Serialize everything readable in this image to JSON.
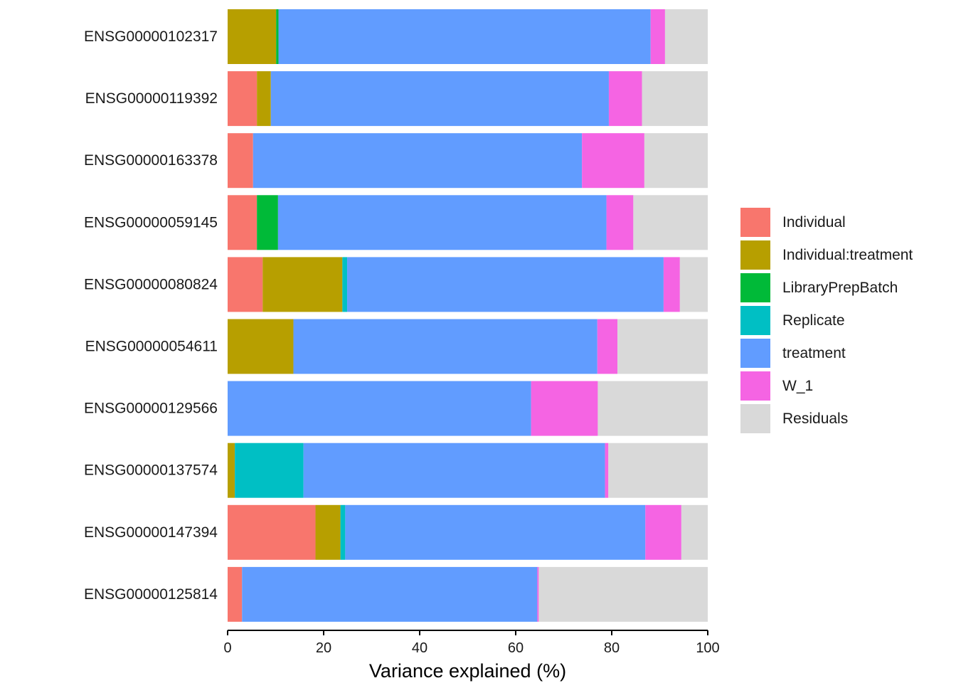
{
  "chart_data": {
    "type": "bar",
    "orientation": "horizontal",
    "stacked": true,
    "xlabel": "Variance explained (%)",
    "ylabel": "",
    "xlim": [
      0,
      100
    ],
    "xticks": [
      0,
      20,
      40,
      60,
      80,
      100
    ],
    "grid": false,
    "legend_position": "right",
    "categories": [
      "ENSG00000102317",
      "ENSG00000119392",
      "ENSG00000163378",
      "ENSG00000059145",
      "ENSG00000080824",
      "ENSG00000054611",
      "ENSG00000129566",
      "ENSG00000137574",
      "ENSG00000147394",
      "ENSG00000125814"
    ],
    "series": [
      {
        "name": "Individual",
        "color": "#F8766D",
        "values": [
          0,
          6.1,
          5.3,
          6.1,
          7.3,
          0,
          0,
          0,
          18.3,
          3.0
        ]
      },
      {
        "name": "Individual:treatment",
        "color": "#B79F00",
        "values": [
          10.1,
          2.9,
          0,
          0,
          16.6,
          13.7,
          0,
          1.5,
          5.2,
          0
        ]
      },
      {
        "name": "LibraryPrepBatch",
        "color": "#00BA38",
        "values": [
          0.5,
          0,
          0,
          4.4,
          0,
          0,
          0,
          0,
          0,
          0
        ]
      },
      {
        "name": "Replicate",
        "color": "#00BFC4",
        "values": [
          0,
          0,
          0,
          0,
          1.0,
          0,
          0,
          14.3,
          1.0,
          0
        ]
      },
      {
        "name": "treatment",
        "color": "#619CFF",
        "values": [
          77.5,
          70.4,
          68.5,
          68.4,
          65.9,
          63.3,
          63.2,
          62.8,
          62.5,
          61.5
        ]
      },
      {
        "name": "W_1",
        "color": "#F564E3",
        "values": [
          3.0,
          6.9,
          13.0,
          5.6,
          3.4,
          4.2,
          13.9,
          0.7,
          7.5,
          0.3
        ]
      },
      {
        "name": "Residuals",
        "color": "#D9D9D9",
        "values": [
          8.9,
          13.7,
          13.2,
          15.5,
          5.8,
          18.8,
          22.9,
          20.7,
          5.5,
          35.2
        ]
      }
    ]
  }
}
